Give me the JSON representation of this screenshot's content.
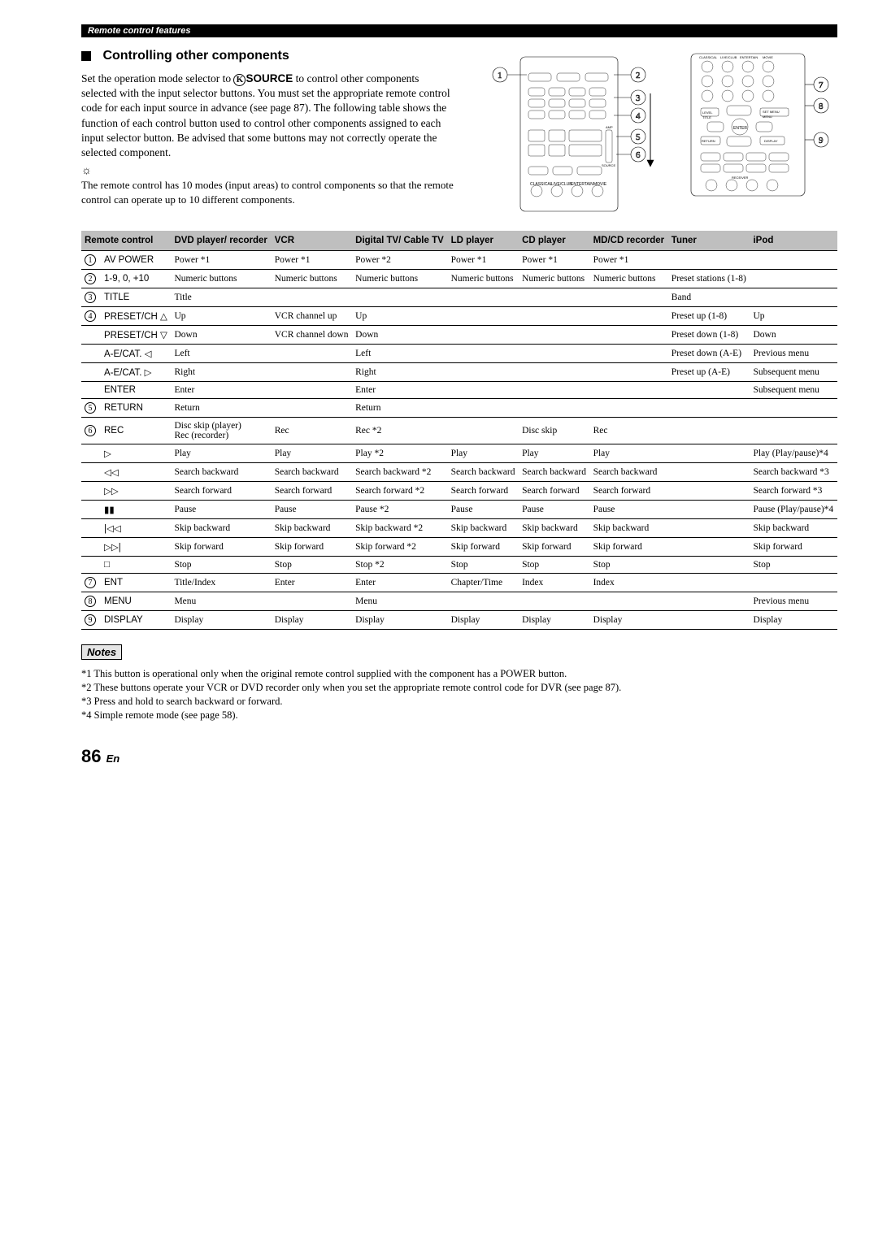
{
  "header_bar": "Remote control features",
  "section_title": "Controlling other components",
  "intro": "Set the operation mode selector to ",
  "intro2": " to control other components selected with the input selector buttons. You must set the appropriate remote control code for each input source in advance (see page 87). The following table shows the function of each control button used to control other components assigned to each input selector button. Be advised that some buttons may not correctly operate the selected component.",
  "source_label": "SOURCE",
  "hint": "The remote control has 10 modes (input areas) to control components so that the remote control can operate up to 10 different components.",
  "columns": [
    "Remote control",
    "DVD player/ recorder",
    "VCR",
    "Digital TV/ Cable TV",
    "LD player",
    "CD player",
    "MD/CD recorder",
    "Tuner",
    "iPod"
  ],
  "rows": [
    {
      "n": "1",
      "label": "AV POWER",
      "c": [
        "Power *1",
        "Power *1",
        "Power *2",
        "Power *1",
        "Power *1",
        "Power *1",
        "",
        ""
      ]
    },
    {
      "n": "2",
      "label": "1-9, 0, +10",
      "c": [
        "Numeric buttons",
        "Numeric buttons",
        "Numeric buttons",
        "Numeric buttons",
        "Numeric buttons",
        "Numeric buttons",
        "Preset stations (1-8)",
        ""
      ]
    },
    {
      "n": "3",
      "label": "TITLE",
      "c": [
        "Title",
        "",
        "",
        "",
        "",
        "",
        "Band",
        ""
      ]
    },
    {
      "n": "4",
      "label": "PRESET/CH △",
      "c": [
        "Up",
        "VCR channel up",
        "Up",
        "",
        "",
        "",
        "Preset up (1-8)",
        "Up"
      ]
    },
    {
      "n": "",
      "label": "PRESET/CH ▽",
      "c": [
        "Down",
        "VCR channel down",
        "Down",
        "",
        "",
        "",
        "Preset down (1-8)",
        "Down"
      ]
    },
    {
      "n": "",
      "label": "A-E/CAT. ◁",
      "c": [
        "Left",
        "",
        "Left",
        "",
        "",
        "",
        "Preset down (A-E)",
        "Previous menu"
      ]
    },
    {
      "n": "",
      "label": "A-E/CAT. ▷",
      "c": [
        "Right",
        "",
        "Right",
        "",
        "",
        "",
        "Preset up (A-E)",
        "Subsequent menu"
      ]
    },
    {
      "n": "",
      "label": "ENTER",
      "c": [
        "Enter",
        "",
        "Enter",
        "",
        "",
        "",
        "",
        "Subsequent menu"
      ]
    },
    {
      "n": "5",
      "label": "RETURN",
      "c": [
        "Return",
        "",
        "Return",
        "",
        "",
        "",
        "",
        ""
      ]
    },
    {
      "n": "6",
      "label": "REC",
      "c": [
        "Disc skip (player)\nRec (recorder)",
        "Rec",
        "Rec *2",
        "",
        "Disc skip",
        "Rec",
        "",
        ""
      ]
    },
    {
      "n": "",
      "label": "▷",
      "c": [
        "Play",
        "Play",
        "Play *2",
        "Play",
        "Play",
        "Play",
        "",
        "Play (Play/pause)*4"
      ]
    },
    {
      "n": "",
      "label": "◁◁",
      "c": [
        "Search backward",
        "Search backward",
        "Search backward *2",
        "Search backward",
        "Search backward",
        "Search backward",
        "",
        "Search backward *3"
      ]
    },
    {
      "n": "",
      "label": "▷▷",
      "c": [
        "Search forward",
        "Search forward",
        "Search forward *2",
        "Search forward",
        "Search forward",
        "Search forward",
        "",
        "Search forward *3"
      ]
    },
    {
      "n": "",
      "label": "▮▮",
      "c": [
        "Pause",
        "Pause",
        "Pause *2",
        "Pause",
        "Pause",
        "Pause",
        "",
        "Pause (Play/pause)*4"
      ]
    },
    {
      "n": "",
      "label": "|◁◁",
      "c": [
        "Skip backward",
        "Skip backward",
        "Skip backward *2",
        "Skip backward",
        "Skip backward",
        "Skip backward",
        "",
        "Skip backward"
      ]
    },
    {
      "n": "",
      "label": "▷▷|",
      "c": [
        "Skip forward",
        "Skip forward",
        "Skip forward *2",
        "Skip forward",
        "Skip forward",
        "Skip forward",
        "",
        "Skip forward"
      ]
    },
    {
      "n": "",
      "label": "□",
      "c": [
        "Stop",
        "Stop",
        "Stop *2",
        "Stop",
        "Stop",
        "Stop",
        "",
        "Stop"
      ]
    },
    {
      "n": "7",
      "label": "ENT",
      "c": [
        "Title/Index",
        "Enter",
        "Enter",
        "Chapter/Time",
        "Index",
        "Index",
        "",
        ""
      ]
    },
    {
      "n": "8",
      "label": "MENU",
      "c": [
        "Menu",
        "",
        "Menu",
        "",
        "",
        "",
        "",
        "Previous menu"
      ]
    },
    {
      "n": "9",
      "label": "DISPLAY",
      "c": [
        "Display",
        "Display",
        "Display",
        "Display",
        "Display",
        "Display",
        "",
        "Display"
      ]
    }
  ],
  "notes_title": "Notes",
  "notes": [
    "*1 This button is operational only when the original remote control supplied with the component has a POWER button.",
    "*2 These buttons operate your VCR or DVD recorder only when you set the appropriate remote control code for DVR (see page 87).",
    "*3 Press and hold to search backward or forward.",
    "*4 Simple remote mode (see page 58)."
  ],
  "page_number": "86",
  "page_lang": "En"
}
